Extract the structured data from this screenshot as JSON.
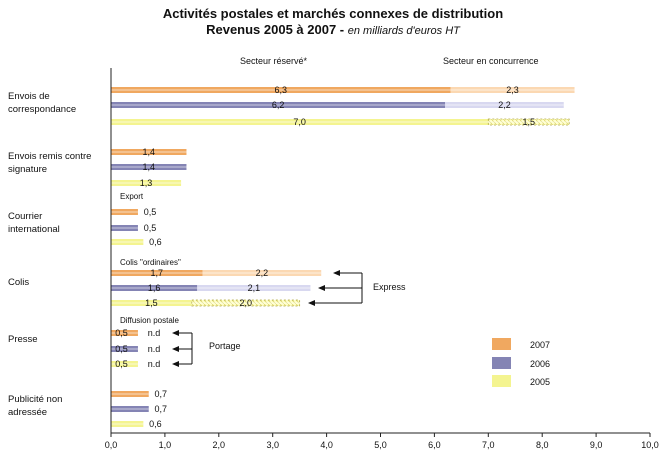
{
  "title": "Activités postales et marchés connexes de distribution",
  "subtitle_main": "Revenus 2005 à 2007 - ",
  "subtitle_unit": "en milliards d'euros HT",
  "column_headers": {
    "left": "Secteur réservé*",
    "right": "Secteur en concurrence"
  },
  "annotations": {
    "export": "Export",
    "colis_ordinaires": "Colis \"ordinaires\"",
    "express": "Express",
    "diffusion": "Diffusion postale",
    "portage": "Portage"
  },
  "colors": {
    "2007": "#f0a860",
    "2006": "#8484b4",
    "2005": "#f4f490"
  },
  "chart_data": {
    "type": "bar",
    "orientation": "horizontal",
    "stacked": true,
    "title": "Activités postales et marchés connexes de distribution",
    "xlim": [
      0,
      10
    ],
    "xticks": [
      "0,0",
      "1,0",
      "2,0",
      "3,0",
      "4,0",
      "5,0",
      "6,0",
      "7,0",
      "8,0",
      "9,0",
      "10,0"
    ],
    "legend": {
      "position": "right",
      "entries": [
        "2007",
        "2006",
        "2005"
      ]
    },
    "categories": [
      {
        "name": "Envois de correspondance",
        "lines": [
          "Envois de",
          "correspondance"
        ],
        "bars": [
          {
            "year": "2007",
            "segments": [
              {
                "value": 6.3,
                "label": "6,3"
              },
              {
                "value": 2.3,
                "label": "2,3"
              }
            ]
          },
          {
            "year": "2006",
            "segments": [
              {
                "value": 6.2,
                "label": "6,2"
              },
              {
                "value": 2.2,
                "label": "2,2"
              }
            ]
          },
          {
            "year": "2005",
            "segments": [
              {
                "value": 7.0,
                "label": "7,0"
              },
              {
                "value": 1.5,
                "label": "1,5"
              }
            ]
          }
        ]
      },
      {
        "name": "Envois remis contre signature",
        "lines": [
          "Envois remis contre",
          "signature"
        ],
        "bars": [
          {
            "year": "2007",
            "segments": [
              {
                "value": 1.4,
                "label": "1,4"
              }
            ]
          },
          {
            "year": "2006",
            "segments": [
              {
                "value": 1.4,
                "label": "1,4"
              }
            ]
          },
          {
            "year": "2005",
            "segments": [
              {
                "value": 1.3,
                "label": "1,3"
              }
            ]
          }
        ]
      },
      {
        "name": "Courrier international",
        "lines": [
          "Courrier",
          "international"
        ],
        "bars": [
          {
            "year": "2007",
            "segments": [
              {
                "value": 0.5,
                "label": "0,5"
              }
            ]
          },
          {
            "year": "2006",
            "segments": [
              {
                "value": 0.5,
                "label": "0,5"
              }
            ]
          },
          {
            "year": "2005",
            "segments": [
              {
                "value": 0.6,
                "label": "0,6"
              }
            ]
          }
        ]
      },
      {
        "name": "Colis",
        "lines": [
          "Colis"
        ],
        "bars": [
          {
            "year": "2007",
            "segments": [
              {
                "value": 1.7,
                "label": "1,7"
              },
              {
                "value": 2.2,
                "label": "2,2"
              }
            ]
          },
          {
            "year": "2006",
            "segments": [
              {
                "value": 1.6,
                "label": "1,6"
              },
              {
                "value": 2.1,
                "label": "2,1"
              }
            ]
          },
          {
            "year": "2005",
            "segments": [
              {
                "value": 1.5,
                "label": "1,5"
              },
              {
                "value": 2.0,
                "label": "2,0"
              }
            ]
          }
        ]
      },
      {
        "name": "Presse",
        "lines": [
          "Presse"
        ],
        "bars": [
          {
            "year": "2007",
            "segments": [
              {
                "value": 0.5,
                "label": "0,5"
              }
            ],
            "extra_label": "n.d"
          },
          {
            "year": "2006",
            "segments": [
              {
                "value": 0.5,
                "label": "0,5"
              }
            ],
            "extra_label": "n.d"
          },
          {
            "year": "2005",
            "segments": [
              {
                "value": 0.5,
                "label": "0,5"
              }
            ],
            "extra_label": "n.d"
          }
        ]
      },
      {
        "name": "Publicité non adressée",
        "lines": [
          "Publicité non",
          "adressée"
        ],
        "bars": [
          {
            "year": "2007",
            "segments": [
              {
                "value": 0.7,
                "label": "0,7"
              }
            ]
          },
          {
            "year": "2006",
            "segments": [
              {
                "value": 0.7,
                "label": "0,7"
              }
            ]
          },
          {
            "year": "2005",
            "segments": [
              {
                "value": 0.6,
                "label": "0,6"
              }
            ]
          }
        ]
      }
    ]
  }
}
